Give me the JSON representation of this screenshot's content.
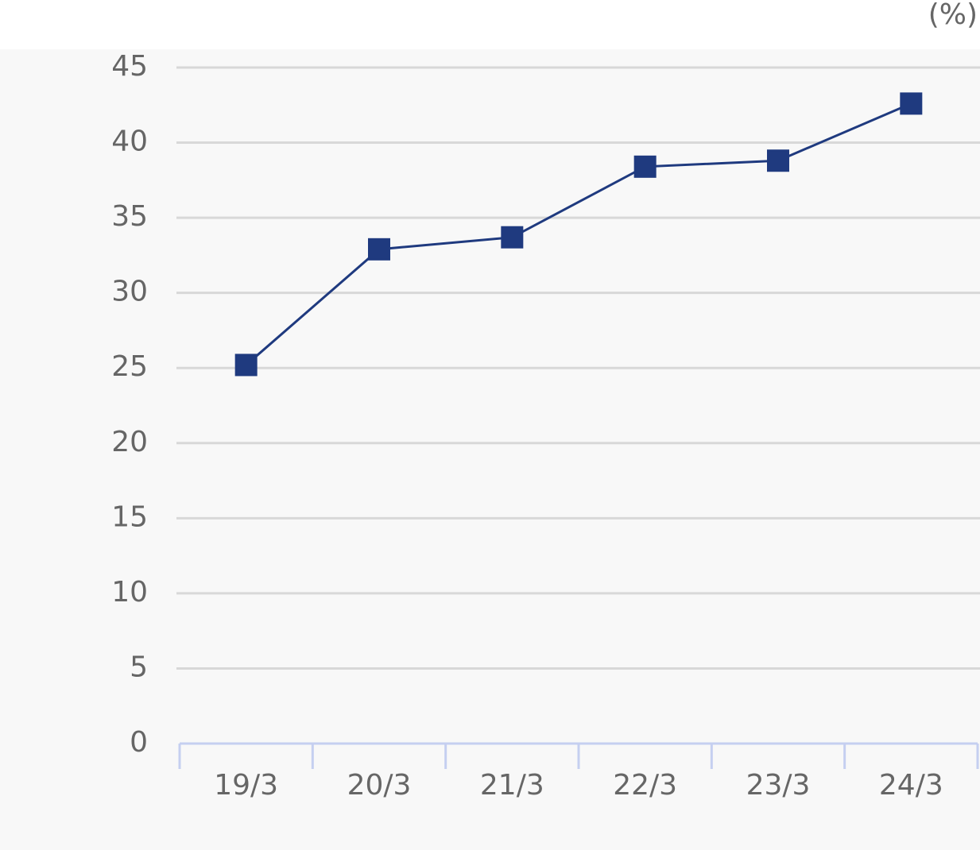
{
  "chart_data": {
    "type": "line",
    "unit": "(%)",
    "categories": [
      "19/3",
      "20/3",
      "21/3",
      "22/3",
      "23/3",
      "24/3"
    ],
    "values": [
      25.2,
      32.9,
      33.7,
      38.4,
      38.8,
      42.6
    ],
    "color": "#1f3a7f",
    "ylim": [
      0,
      45
    ],
    "yticks": [
      0,
      5,
      10,
      15,
      20,
      25,
      30,
      35,
      40,
      45
    ],
    "grid": true
  }
}
